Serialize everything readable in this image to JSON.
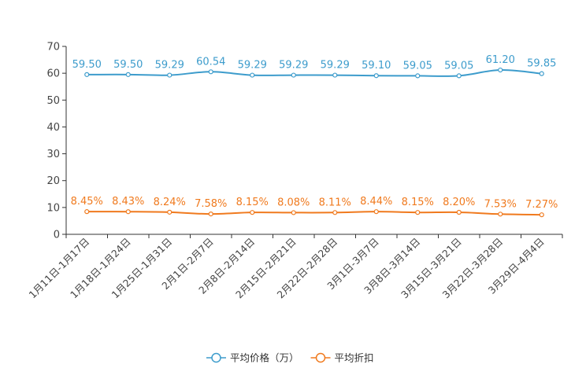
{
  "chart_data": {
    "type": "line",
    "title": "",
    "xlabel": "",
    "ylabel": "",
    "ylim": [
      0,
      70
    ],
    "yticks": [
      0,
      10,
      20,
      30,
      40,
      50,
      60,
      70
    ],
    "grid": false,
    "legend_position": "bottom-center",
    "categories": [
      "1月11日-1月17日",
      "1月18日-1月24日",
      "1月25日-1月31日",
      "2月1日-2月7日",
      "2月8日-2月14日",
      "2月15日-2月21日",
      "2月22日-2月28日",
      "3月1日-3月7日",
      "3月8日-3月14日",
      "3月15日-3月21日",
      "3月22日-3月28日",
      "3月29日-4月4日"
    ],
    "series": [
      {
        "name": "平均价格（万）",
        "color": "#3d9ccc",
        "values": [
          59.5,
          59.5,
          59.29,
          60.54,
          59.29,
          59.29,
          59.29,
          59.1,
          59.05,
          59.05,
          61.2,
          59.85
        ],
        "labels": [
          "59.50",
          "59.50",
          "59.29",
          "60.54",
          "59.29",
          "59.29",
          "59.29",
          "59.10",
          "59.05",
          "59.05",
          "61.20",
          "59.85"
        ]
      },
      {
        "name": "平均折扣",
        "color": "#f07a1e",
        "values": [
          8.45,
          8.43,
          8.24,
          7.58,
          8.15,
          8.08,
          8.11,
          8.44,
          8.15,
          8.2,
          7.53,
          7.27
        ],
        "labels": [
          "8.45%",
          "8.43%",
          "8.24%",
          "7.58%",
          "8.15%",
          "8.08%",
          "8.11%",
          "8.44%",
          "8.15%",
          "8.20%",
          "7.53%",
          "7.27%"
        ]
      }
    ]
  }
}
